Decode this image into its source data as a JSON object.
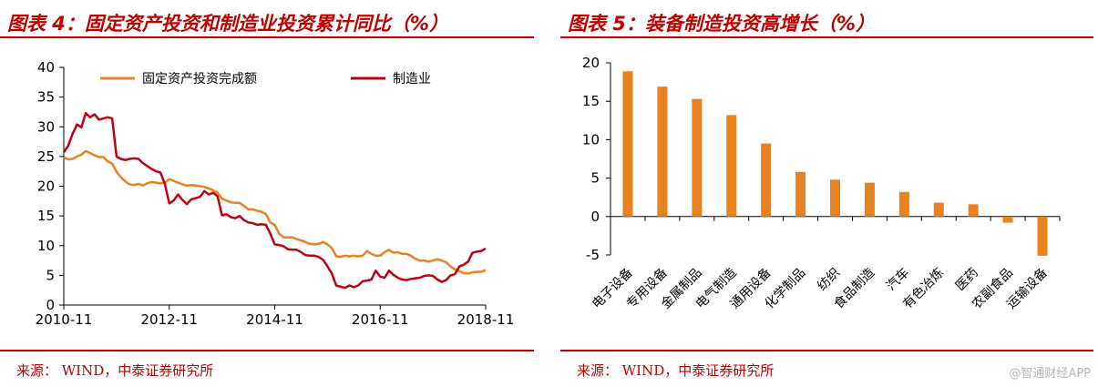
{
  "left": {
    "title": "图表 4：固定资产投资和制造业投资累计同比（%）",
    "source": "来源：  WIND，中泰证券研究所"
  },
  "right": {
    "title": "图表 5：装备制造投资高增长（%）",
    "source": "来源：  WIND，中泰证券研究所"
  },
  "watermark": "@智通财经APP",
  "charts": {
    "left": {
      "type": "line",
      "ylim": [
        0,
        40
      ],
      "yticks": [
        0,
        5,
        10,
        15,
        20,
        25,
        30,
        35,
        40
      ],
      "xticks": [
        "2010-11",
        "2012-11",
        "2014-11",
        "2016-11",
        "2018-11"
      ],
      "x_index_range": [
        0,
        96
      ],
      "legend_placement": "top",
      "colors": {
        "fixed_asset": "#e8821e",
        "manufacturing": "#c0000c"
      },
      "x": [
        0,
        1,
        2,
        3,
        4,
        5,
        6,
        7,
        8,
        9,
        10,
        11,
        12,
        13,
        14,
        15,
        16,
        17,
        18,
        19,
        20,
        21,
        22,
        23,
        24,
        25,
        26,
        27,
        28,
        29,
        30,
        31,
        32,
        33,
        34,
        35,
        36,
        37,
        38,
        39,
        40,
        41,
        42,
        43,
        44,
        45,
        46,
        47,
        48,
        49,
        50,
        51,
        52,
        53,
        54,
        55,
        56,
        57,
        58,
        59,
        60,
        61,
        62,
        63,
        64,
        65,
        66,
        67,
        68,
        69,
        70,
        71,
        72,
        73,
        74,
        75,
        76,
        77,
        78,
        79,
        80,
        81,
        82,
        83,
        84,
        85,
        86,
        87,
        88,
        89,
        90,
        91,
        92,
        93,
        94,
        95,
        96
      ],
      "series": [
        {
          "name": "固定资产投资完成额",
          "values": [
            24.9,
            24.5,
            24.6,
            25.0,
            25.3,
            25.9,
            25.6,
            25.2,
            24.9,
            24.9,
            24.2,
            23.8,
            22.4,
            21.5,
            20.8,
            20.3,
            20.2,
            20.4,
            20.1,
            20.5,
            20.7,
            20.6,
            20.5,
            20.6,
            21.2,
            20.9,
            20.6,
            20.3,
            20.1,
            20.2,
            20.1,
            20.0,
            19.9,
            19.6,
            19.3,
            18.9,
            17.9,
            17.6,
            17.3,
            17.2,
            17.2,
            16.7,
            16.1,
            16.1,
            15.9,
            15.7,
            15.3,
            13.9,
            13.5,
            12.0,
            11.4,
            11.4,
            11.4,
            11.1,
            10.9,
            10.6,
            10.3,
            10.2,
            10.3,
            10.6,
            10.2,
            9.6,
            8.2,
            8.1,
            8.3,
            8.2,
            8.3,
            8.2,
            8.3,
            9.1,
            8.6,
            8.3,
            8.3,
            8.9,
            9.3,
            8.8,
            8.9,
            8.6,
            8.6,
            8.3,
            7.8,
            7.5,
            7.5,
            7.3,
            7.5,
            7.7,
            7.5,
            7.2,
            6.5,
            6.0,
            5.7,
            5.4,
            5.3,
            5.5,
            5.6,
            5.6,
            5.9
          ]
        },
        {
          "name": "制造业",
          "values": [
            25.7,
            26.8,
            28.8,
            30.4,
            29.9,
            32.3,
            31.6,
            32.1,
            31.2,
            31.4,
            31.6,
            31.4,
            25.0,
            24.6,
            24.4,
            24.6,
            24.7,
            24.6,
            23.9,
            23.4,
            22.9,
            22.5,
            22.3,
            20.4,
            17.1,
            17.6,
            18.6,
            17.7,
            17.0,
            17.8,
            18.0,
            18.2,
            19.2,
            18.6,
            18.9,
            18.3,
            15.1,
            15.3,
            14.8,
            14.6,
            15.0,
            14.3,
            13.9,
            13.8,
            13.5,
            13.6,
            13.5,
            12.0,
            10.2,
            10.1,
            9.9,
            9.4,
            9.3,
            9.3,
            8.9,
            8.4,
            8.3,
            8.3,
            8.1,
            7.6,
            6.5,
            5.3,
            3.3,
            3.1,
            2.9,
            3.3,
            3.0,
            3.3,
            4.0,
            4.1,
            4.3,
            5.8,
            4.8,
            4.6,
            5.8,
            5.1,
            4.6,
            4.3,
            4.2,
            4.4,
            4.5,
            4.6,
            4.9,
            5.0,
            4.9,
            4.3,
            3.9,
            4.2,
            5.0,
            5.2,
            6.5,
            6.8,
            7.3,
            8.8,
            9.0,
            9.1,
            9.5
          ]
        }
      ]
    },
    "right": {
      "type": "bar",
      "ylim": [
        -5,
        20
      ],
      "yticks": [
        -5,
        0,
        5,
        10,
        15,
        20
      ],
      "bar_color": "#e8821e",
      "categories": [
        "电子设备",
        "专用设备",
        "金属制品",
        "电气制造",
        "通用设备",
        "化学制品",
        "纺织",
        "食品制造",
        "汽车",
        "有色冶炼",
        "医药",
        "农副食品",
        "运输设备"
      ],
      "values": [
        18.9,
        16.9,
        15.3,
        13.2,
        9.5,
        5.8,
        4.8,
        4.4,
        3.2,
        1.8,
        1.6,
        -0.8,
        -5.1
      ]
    }
  }
}
